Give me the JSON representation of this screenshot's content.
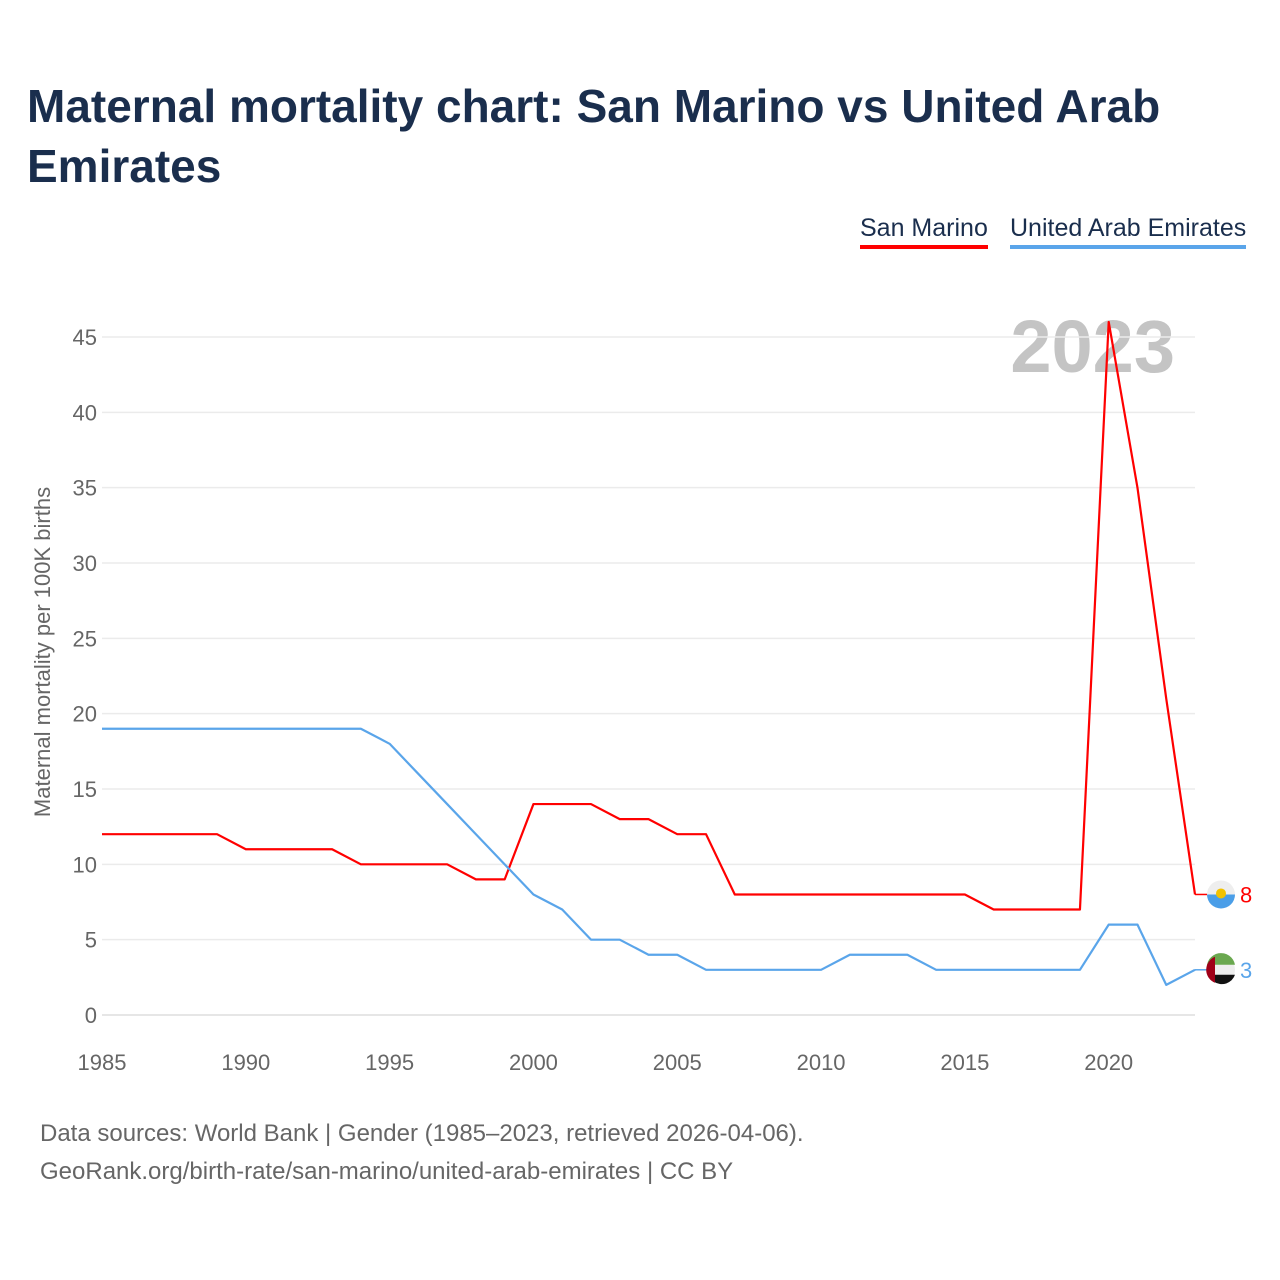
{
  "title": "Maternal mortality chart: San Marino vs United Arab Emirates",
  "year_label": "2023",
  "footer": {
    "line1": "Data sources: World Bank | Gender (1985–2023, retrieved 2026-04-06).",
    "line2": "GeoRank.org/birth-rate/san-marino/united-arab-emirates | CC BY"
  },
  "chart_data": {
    "type": "line",
    "title": "Maternal mortality chart: San Marino vs United Arab Emirates",
    "xlabel": "",
    "ylabel": "Maternal mortality per 100K births",
    "xlim": [
      1985,
      2023
    ],
    "ylim": [
      0,
      45
    ],
    "xticks": [
      1985,
      1990,
      1995,
      2000,
      2005,
      2010,
      2015,
      2020
    ],
    "yticks": [
      0,
      5,
      10,
      15,
      20,
      25,
      30,
      35,
      40,
      45
    ],
    "grid": true,
    "legend_position": "top-right",
    "x": [
      1985,
      1986,
      1987,
      1988,
      1989,
      1990,
      1991,
      1992,
      1993,
      1994,
      1995,
      1996,
      1997,
      1998,
      1999,
      2000,
      2001,
      2002,
      2003,
      2004,
      2005,
      2006,
      2007,
      2008,
      2009,
      2010,
      2011,
      2012,
      2013,
      2014,
      2015,
      2016,
      2017,
      2018,
      2019,
      2020,
      2021,
      2022,
      2023
    ],
    "series": [
      {
        "name": "San Marino",
        "color": "#ff0000",
        "end_label": "8",
        "values": [
          12,
          12,
          12,
          12,
          12,
          11,
          11,
          11,
          11,
          10,
          10,
          10,
          10,
          9,
          9,
          14,
          14,
          14,
          13,
          13,
          12,
          12,
          8,
          8,
          8,
          8,
          8,
          8,
          8,
          8,
          8,
          7,
          7,
          7,
          7,
          46,
          35,
          21,
          8
        ]
      },
      {
        "name": "United Arab Emirates",
        "color": "#5aa5ea",
        "end_label": "3",
        "values": [
          19,
          19,
          19,
          19,
          19,
          19,
          19,
          19,
          19,
          19,
          18,
          16,
          14,
          12,
          10,
          8,
          7,
          5,
          5,
          4,
          4,
          3,
          3,
          3,
          3,
          3,
          4,
          4,
          4,
          3,
          3,
          3,
          3,
          3,
          3,
          6,
          6,
          2,
          3
        ]
      }
    ]
  }
}
